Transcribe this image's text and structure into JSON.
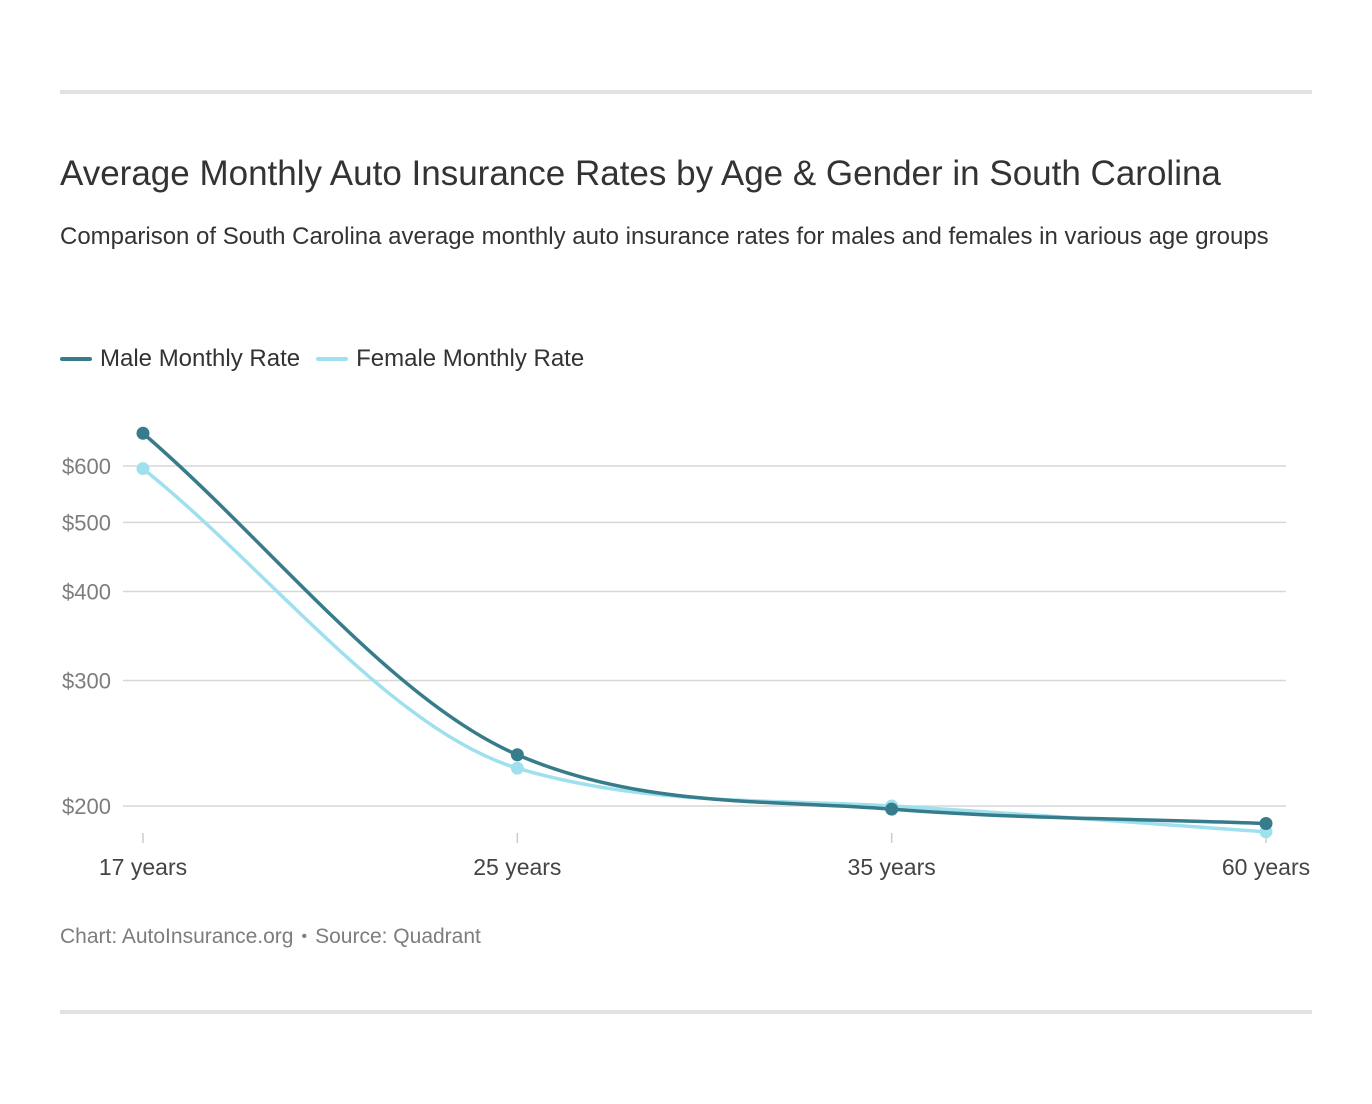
{
  "header": {
    "title": "Average Monthly Auto Insurance Rates by Age & Gender in South Carolina",
    "subtitle": "Comparison of South Carolina average monthly auto insurance rates for males and females in various age groups"
  },
  "legend": {
    "items": [
      {
        "label": "Male Monthly Rate",
        "color": "#367c8a"
      },
      {
        "label": "Female Monthly Rate",
        "color": "#9fe0ee"
      }
    ]
  },
  "footer": {
    "chart_credit": "Chart: AutoInsurance.org",
    "separator": "•",
    "source": "Source: Quadrant"
  },
  "chart_data": {
    "type": "line",
    "title": "Average Monthly Auto Insurance Rates by Age & Gender in South Carolina",
    "subtitle": "Comparison of South Carolina average monthly auto insurance rates for males and females in various age groups",
    "categories": [
      "17 years",
      "25 years",
      "35 years",
      "60 years"
    ],
    "series": [
      {
        "name": "Male Monthly Rate",
        "color": "#367c8a",
        "values": [
          667,
          236,
          198,
          189
        ]
      },
      {
        "name": "Female Monthly Rate",
        "color": "#9fe0ee",
        "values": [
          595,
          226,
          200,
          184
        ]
      }
    ],
    "y_ticks": [
      200,
      300,
      400,
      500,
      600
    ],
    "y_tick_labels": [
      "$200",
      "$300",
      "$400",
      "$500",
      "$600"
    ],
    "y_scale": "log",
    "ylim": [
      180,
      700
    ],
    "grid": true,
    "legend_position": "top-left",
    "xlabel": "",
    "ylabel": ""
  }
}
